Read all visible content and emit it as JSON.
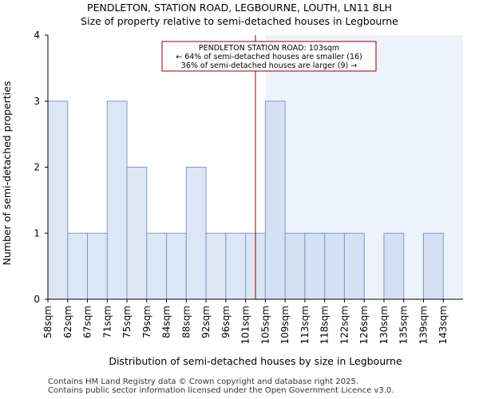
{
  "chart_data": {
    "type": "bar",
    "title": "PENDLETON, STATION ROAD, LEGBOURNE, LOUTH, LN11 8LH",
    "subtitle": "Size of property relative to semi-detached houses in Legbourne",
    "xlabel": "Distribution of semi-detached houses by size in Legbourne",
    "ylabel": "Number of semi-detached properties",
    "categories": [
      "58sqm",
      "62sqm",
      "67sqm",
      "71sqm",
      "75sqm",
      "79sqm",
      "84sqm",
      "88sqm",
      "92sqm",
      "96sqm",
      "101sqm",
      "105sqm",
      "109sqm",
      "113sqm",
      "118sqm",
      "122sqm",
      "126sqm",
      "130sqm",
      "135sqm",
      "139sqm",
      "143sqm"
    ],
    "values": [
      3,
      1,
      1,
      3,
      2,
      1,
      1,
      2,
      1,
      1,
      1,
      3,
      1,
      1,
      1,
      1,
      0,
      1,
      0,
      1,
      0
    ],
    "ylim": [
      0,
      4
    ],
    "yticks": [
      0,
      1,
      2,
      3,
      4
    ],
    "grid": false,
    "marker": {
      "value": 103,
      "unit": "sqm",
      "highlight_from_index": 11
    },
    "colors": {
      "bar_fill": "#dce6f4",
      "bar_fill_highlight": "#d4e0f4",
      "bar_edge": "#7a9cc8",
      "highlight_bg": "#eef2fb",
      "marker": "#8b0000"
    },
    "annotation": {
      "lines": [
        "PENDLETON STATION ROAD: 103sqm",
        "← 64% of semi-detached houses are smaller (16)",
        "36% of semi-detached houses are larger (9) →"
      ]
    }
  },
  "footer": {
    "line1": "Contains HM Land Registry data © Crown copyright and database right 2025.",
    "line2": "Contains public sector information licensed under the Open Government Licence v3.0."
  }
}
